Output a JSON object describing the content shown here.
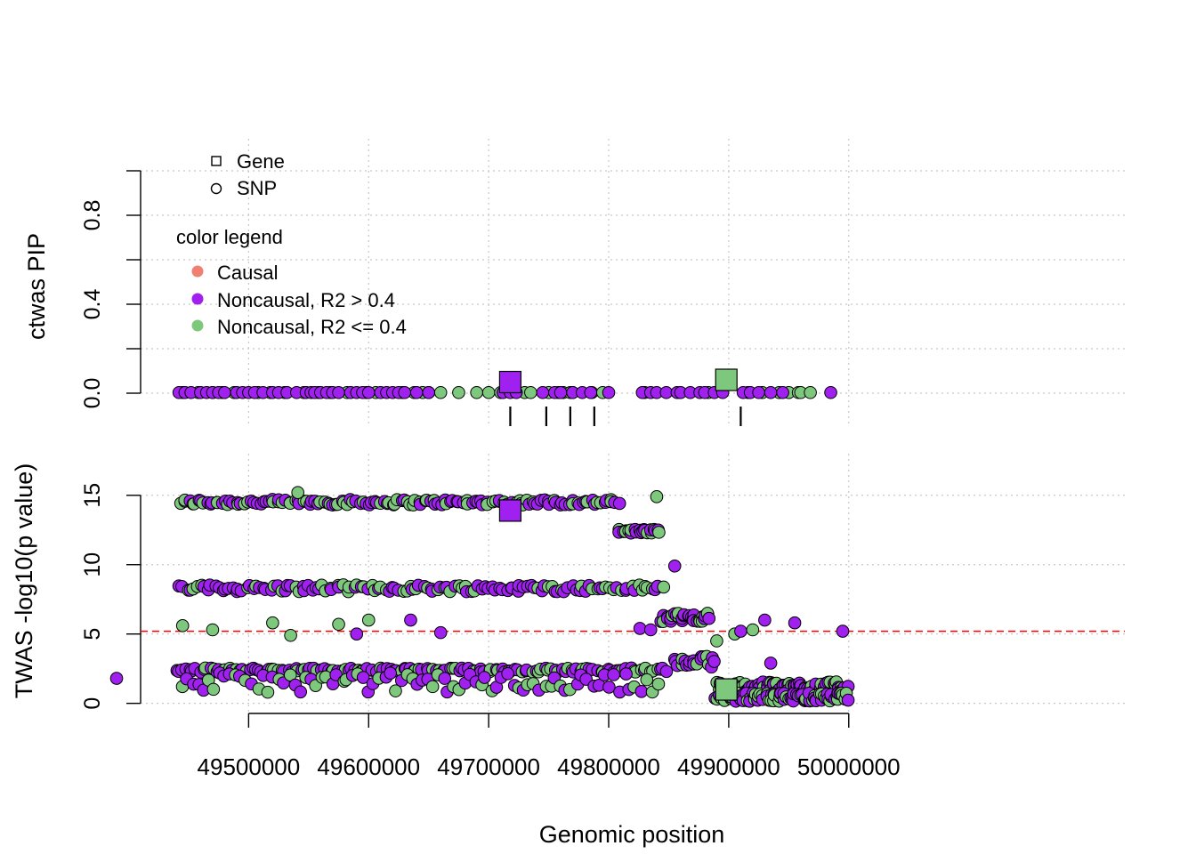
{
  "xlabel": "Genomic position",
  "legend": {
    "shapes": [
      {
        "label": "Gene",
        "shape": "square"
      },
      {
        "label": "SNP",
        "shape": "circle"
      }
    ],
    "color_title": "color legend",
    "colors": [
      {
        "label": "Causal",
        "color": "#f08072"
      },
      {
        "label": "Noncausal, R2 > 0.4",
        "color": "#a020f0"
      },
      {
        "label": "Noncausal, R2 <= 0.4",
        "color": "#7ec87e"
      }
    ]
  },
  "chart_data": [
    {
      "type": "scatter",
      "panel": "top",
      "ylabel": "ctwas PIP",
      "ylim": [
        0,
        1
      ],
      "yticks": [
        0.0,
        0.4,
        0.8
      ],
      "yticks_labels": [
        "0.0",
        "0.4",
        "0.8"
      ],
      "xlim": [
        49410000,
        50230000
      ],
      "grid": true,
      "colors": {
        "purple": "#a020f0",
        "green": "#7ec87e"
      },
      "snps_purple_x": [
        49442000,
        49447000,
        49452000,
        49460000,
        49465000,
        49470000,
        49475000,
        49480000,
        49490000,
        49495000,
        49500000,
        49505000,
        49512000,
        49520000,
        49525000,
        49532000,
        49540000,
        49548000,
        49552000,
        49555000,
        49560000,
        49565000,
        49570000,
        49575000,
        49585000,
        49590000,
        49595000,
        49600000,
        49610000,
        49615000,
        49620000,
        49625000,
        49630000,
        49640000,
        49650000,
        49712000,
        49718000,
        49723000,
        49745000,
        49755000,
        49760000,
        49770000,
        49778000,
        49785000,
        49800000,
        49828000,
        49835000,
        49840000,
        49848000,
        49857000,
        49860000,
        49868000,
        49876000,
        49880000,
        49888000,
        49895000,
        49912000,
        49918000,
        49925000,
        49935000,
        49945000,
        49985000
      ],
      "snps_green_x": [
        49445000,
        49458000,
        49470000,
        49478000,
        49488000,
        49508000,
        49518000,
        49530000,
        49546000,
        49558000,
        49568000,
        49582000,
        49598000,
        49606000,
        49628000,
        49638000,
        49645000,
        49650000,
        49660000,
        49675000,
        49690000,
        49700000,
        49710000,
        49730000,
        49735000,
        49750000,
        49758000,
        49762000,
        49768000,
        49770000,
        49786000,
        49795000,
        49830000,
        49883000,
        49916000,
        49928000,
        49942000,
        49950000,
        49958000,
        49960000,
        49968000
      ],
      "genes": [
        {
          "x": 49718000,
          "pip": 0.05,
          "color": "#a020f0"
        },
        {
          "x": 49898000,
          "pip": 0.06,
          "color": "#7ec87e"
        }
      ],
      "gene_ticks_x": [
        49718000,
        49748000,
        49768000,
        49788000,
        49910000
      ]
    },
    {
      "type": "scatter",
      "panel": "bottom",
      "ylabel": "TWAS -log10(p value)",
      "ylim": [
        -0.6,
        18
      ],
      "yticks": [
        0,
        5,
        10,
        15
      ],
      "yticks_labels": [
        "0",
        "5",
        "10",
        "15"
      ],
      "xlim": [
        49410000,
        50230000
      ],
      "xticks": [
        49500000,
        49600000,
        49700000,
        49800000,
        49900000,
        50000000
      ],
      "xticks_labels": [
        "49500000",
        "49600000",
        "49700000",
        "49800000",
        "49900000",
        "50000000"
      ],
      "threshold": 5.2,
      "threshold_color": "#ff0000",
      "grid": true,
      "genes": [
        {
          "x": 49718000,
          "y": 13.9,
          "color": "#a020f0"
        },
        {
          "x": 49898000,
          "y": 1.0,
          "color": "#7ec87e"
        }
      ],
      "bands": [
        {
          "from": 49443000,
          "to": 49808000,
          "y": 14.5,
          "spread": 0.2,
          "n": 150
        },
        {
          "from": 49443000,
          "to": 49845000,
          "y": 8.3,
          "spread": 0.25,
          "n": 140
        },
        {
          "from": 49440000,
          "to": 49848000,
          "y": 2.4,
          "spread": 0.15,
          "n": 150
        },
        {
          "from": 49445000,
          "to": 49840000,
          "y": 1.5,
          "spread": 0.7,
          "n": 90
        },
        {
          "from": 49808000,
          "to": 49843000,
          "y": 12.4,
          "spread": 0.15,
          "n": 22
        },
        {
          "from": 49844000,
          "to": 49885000,
          "y": 6.2,
          "spread": 0.3,
          "n": 32
        },
        {
          "from": 49855000,
          "to": 49888000,
          "y": 3.0,
          "spread": 0.4,
          "n": 20
        },
        {
          "from": 49890000,
          "to": 49998000,
          "y": 1.2,
          "spread": 0.35,
          "n": 90
        },
        {
          "from": 49890000,
          "to": 50000000,
          "y": 0.45,
          "spread": 0.3,
          "n": 90
        }
      ],
      "points": [
        {
          "x": 49390000,
          "y": 1.8
        },
        {
          "x": 49541000,
          "y": 15.2
        },
        {
          "x": 49600000,
          "y": 6.0
        },
        {
          "x": 49635000,
          "y": 6.0
        },
        {
          "x": 49840000,
          "y": 14.9
        },
        {
          "x": 49855000,
          "y": 9.9
        },
        {
          "x": 49890000,
          "y": 4.5
        },
        {
          "x": 49905000,
          "y": 5.0
        },
        {
          "x": 49910000,
          "y": 5.2
        },
        {
          "x": 49920000,
          "y": 5.3
        },
        {
          "x": 49930000,
          "y": 6.0
        },
        {
          "x": 49935000,
          "y": 2.9
        },
        {
          "x": 49955000,
          "y": 5.8
        },
        {
          "x": 49995000,
          "y": 5.2
        },
        {
          "x": 49826000,
          "y": 5.4
        },
        {
          "x": 49835000,
          "y": 5.3
        },
        {
          "x": 49520000,
          "y": 5.8
        },
        {
          "x": 49535000,
          "y": 4.9
        },
        {
          "x": 49575000,
          "y": 5.7
        },
        {
          "x": 49445000,
          "y": 5.6
        },
        {
          "x": 49470000,
          "y": 5.3
        },
        {
          "x": 49660000,
          "y": 5.1
        },
        {
          "x": 49590000,
          "y": 5.0
        }
      ]
    }
  ]
}
